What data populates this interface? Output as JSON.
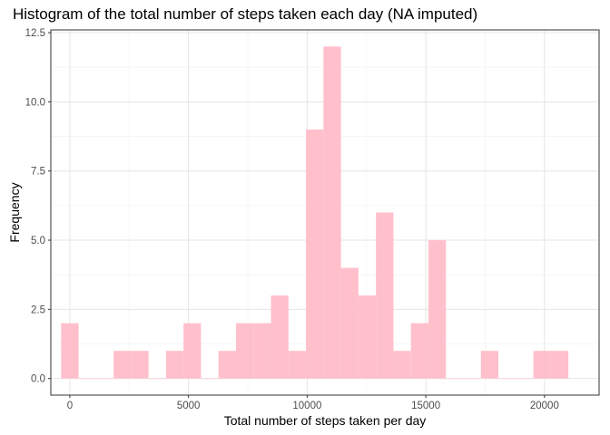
{
  "chart_data": {
    "type": "bar",
    "title": "Histogram of the total number of steps taken each day (NA imputed)",
    "xlabel": "Total number of steps taken per day",
    "ylabel": "Frequency",
    "xlim": [
      -800,
      22300
    ],
    "ylim": [
      -0.6,
      12.6
    ],
    "x_ticks": [
      0,
      5000,
      10000,
      15000,
      20000
    ],
    "x_tick_labels": [
      "0",
      "5000",
      "10000",
      "15000",
      "20000"
    ],
    "y_ticks": [
      0,
      2.5,
      5,
      7.5,
      10,
      12.5
    ],
    "y_tick_labels": [
      "0.0",
      "2.5",
      "5.0",
      "7.5",
      "10.0",
      "12.5"
    ],
    "bin_start": -368.5,
    "bin_width": 737,
    "values": [
      2,
      0,
      0,
      1,
      1,
      0,
      1,
      2,
      0,
      1,
      2,
      2,
      3,
      1,
      9,
      12,
      4,
      3,
      6,
      1,
      2,
      5,
      0,
      0,
      1,
      0,
      0,
      1,
      1
    ],
    "bar_color": "#FFC0CB",
    "grid": true,
    "legend": "none"
  }
}
